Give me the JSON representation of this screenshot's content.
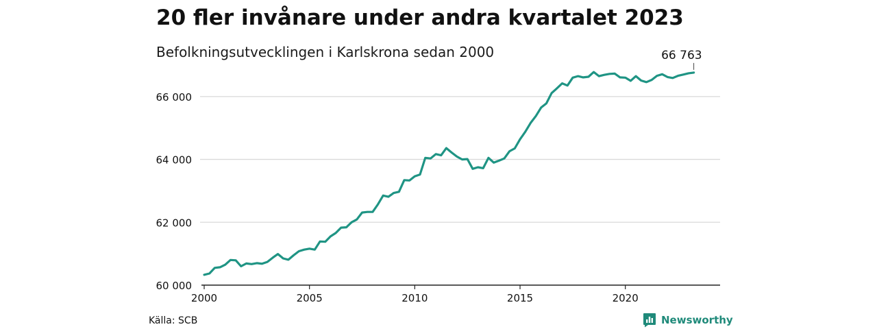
{
  "header": {
    "title": "20 fler invånare under andra kvartalet 2023",
    "subtitle": "Befolkningsutvecklingen i Karlskrona sedan 2000"
  },
  "footer": {
    "source": "Källa: SCB",
    "brand_name": "Newsworthy",
    "brand_icon": "newsworthy-logo-icon"
  },
  "colors": {
    "line": "#1f9484",
    "brand": "#1f8a7a",
    "grid": "#d9d9d9",
    "text": "#111111"
  },
  "chart_data": {
    "type": "line",
    "title": "20 fler invånare under andra kvartalet 2023",
    "subtitle": "Befolkningsutvecklingen i Karlskrona sedan 2000",
    "xlabel": "",
    "ylabel": "",
    "xlim": [
      2000,
      2024.5
    ],
    "ylim": [
      60000,
      67000
    ],
    "x_ticks": [
      2000,
      2005,
      2010,
      2015,
      2020
    ],
    "x_tick_labels": [
      "2000",
      "2005",
      "2010",
      "2015",
      "2020"
    ],
    "y_ticks": [
      60000,
      62000,
      64000,
      66000
    ],
    "y_tick_labels": [
      "60 000",
      "62 000",
      "64 000",
      "66 000"
    ],
    "grid": "horizontal",
    "legend": "none",
    "annotation": {
      "x": 2023.25,
      "y": 66763,
      "label": "66 763"
    },
    "series": [
      {
        "x": [
          2000.0,
          2000.25,
          2000.5,
          2000.75,
          2001.0,
          2001.25,
          2001.5,
          2001.75,
          2002.0,
          2002.25,
          2002.5,
          2002.75,
          2003.0,
          2003.25,
          2003.5,
          2003.75,
          2004.0,
          2004.25,
          2004.5,
          2004.75,
          2005.0,
          2005.25,
          2005.5,
          2005.75,
          2006.0,
          2006.25,
          2006.5,
          2006.75,
          2007.0,
          2007.25,
          2007.5,
          2007.75,
          2008.0,
          2008.25,
          2008.5,
          2008.75,
          2009.0,
          2009.25,
          2009.5,
          2009.75,
          2010.0,
          2010.25,
          2010.5,
          2010.75,
          2011.0,
          2011.25,
          2011.5,
          2011.75,
          2012.0,
          2012.25,
          2012.5,
          2012.75,
          2013.0,
          2013.25,
          2013.5,
          2013.75,
          2014.0,
          2014.25,
          2014.5,
          2014.75,
          2015.0,
          2015.25,
          2015.5,
          2015.75,
          2016.0,
          2016.25,
          2016.5,
          2016.75,
          2017.0,
          2017.25,
          2017.5,
          2017.75,
          2018.0,
          2018.25,
          2018.5,
          2018.75,
          2019.0,
          2019.25,
          2019.5,
          2019.75,
          2020.0,
          2020.25,
          2020.5,
          2020.75,
          2021.0,
          2021.25,
          2021.5,
          2021.75,
          2022.0,
          2022.25,
          2022.5,
          2022.75,
          2023.0,
          2023.25
        ],
        "values": [
          60330,
          60370,
          60550,
          60570,
          60650,
          60800,
          60790,
          60600,
          60690,
          60670,
          60700,
          60680,
          60740,
          60870,
          60990,
          60850,
          60810,
          60950,
          61080,
          61130,
          61160,
          61130,
          61390,
          61380,
          61550,
          61660,
          61830,
          61840,
          62000,
          62090,
          62310,
          62330,
          62330,
          62570,
          62850,
          62810,
          62930,
          62970,
          63340,
          63330,
          63460,
          63520,
          64050,
          64030,
          64170,
          64130,
          64360,
          64220,
          64090,
          64000,
          64010,
          63700,
          63750,
          63720,
          64050,
          63900,
          63960,
          64030,
          64260,
          64350,
          64640,
          64880,
          65160,
          65380,
          65650,
          65780,
          66110,
          66260,
          66420,
          66350,
          66600,
          66650,
          66610,
          66630,
          66780,
          66650,
          66690,
          66720,
          66730,
          66610,
          66600,
          66500,
          66650,
          66510,
          66460,
          66530,
          66660,
          66710,
          66620,
          66590,
          66660,
          66700,
          66740,
          66763
        ]
      }
    ]
  }
}
